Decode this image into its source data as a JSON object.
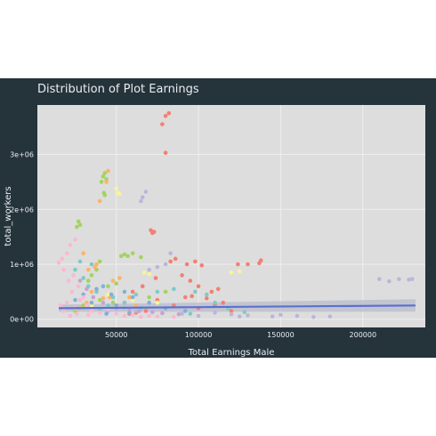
{
  "chart_data": {
    "type": "scatter",
    "title": "Distribution of Plot Earnings",
    "xlabel": "Total Earnings Male",
    "ylabel": "total_workers",
    "xlim": [
      2000,
      238000
    ],
    "ylim": [
      -150000,
      3900000
    ],
    "x_ticks": [
      50000,
      100000,
      150000,
      200000
    ],
    "x_tick_labels": [
      "50000",
      "100000",
      "150000",
      "200000"
    ],
    "y_ticks": [
      0,
      1000000,
      2000000,
      3000000
    ],
    "y_tick_labels": [
      "0e+00",
      "1e+06",
      "2e+06",
      "3e+06"
    ],
    "grid": true,
    "legend": "none",
    "colors": {
      "frame_bg": "#25333b",
      "panel_bg": "#dddddd",
      "grid": "#eeeeee",
      "trend_line": "#5b6fd1",
      "confidence_band": "#b8bcc9"
    },
    "trend_line": {
      "x": [
        15000,
        232000
      ],
      "y": [
        200000,
        250000
      ]
    },
    "series": [
      {
        "color": "#f47f72",
        "points": [
          [
            82000,
            3750000
          ],
          [
            80000,
            3700000
          ],
          [
            78000,
            3550000
          ],
          [
            80000,
            3030000
          ],
          [
            71000,
            1620000
          ],
          [
            72000,
            1570000
          ],
          [
            73000,
            1590000
          ],
          [
            83000,
            1050000
          ],
          [
            86000,
            1100000
          ],
          [
            93000,
            1000000
          ],
          [
            98000,
            1050000
          ],
          [
            102000,
            980000
          ],
          [
            90000,
            800000
          ],
          [
            95000,
            700000
          ],
          [
            100000,
            600000
          ],
          [
            108000,
            500000
          ],
          [
            112000,
            550000
          ],
          [
            74000,
            750000
          ],
          [
            66000,
            600000
          ],
          [
            60000,
            500000
          ],
          [
            55000,
            300000
          ],
          [
            75000,
            350000
          ],
          [
            85000,
            250000
          ],
          [
            110000,
            250000
          ],
          [
            124000,
            1000000
          ],
          [
            130000,
            1000000
          ],
          [
            137000,
            1020000
          ],
          [
            138000,
            1070000
          ],
          [
            120000,
            150000
          ],
          [
            115000,
            300000
          ],
          [
            100000,
            200000
          ],
          [
            92000,
            400000
          ],
          [
            68000,
            150000
          ],
          [
            58000,
            100000
          ],
          [
            62000,
            120000
          ],
          [
            105000,
            380000
          ],
          [
            96000,
            420000
          ]
        ]
      },
      {
        "color": "#a4d35f",
        "points": [
          [
            43000,
            2660000
          ],
          [
            42000,
            2600000
          ],
          [
            44000,
            2550000
          ],
          [
            41000,
            2500000
          ],
          [
            42500,
            2300000
          ],
          [
            43000,
            2260000
          ],
          [
            27000,
            1780000
          ],
          [
            28000,
            1720000
          ],
          [
            26000,
            1680000
          ],
          [
            53000,
            1150000
          ],
          [
            55000,
            1180000
          ],
          [
            57000,
            1150000
          ],
          [
            60000,
            1200000
          ],
          [
            65000,
            1130000
          ],
          [
            40000,
            1050000
          ],
          [
            38000,
            900000
          ],
          [
            35000,
            800000
          ],
          [
            33000,
            700000
          ],
          [
            45000,
            600000
          ],
          [
            50000,
            650000
          ],
          [
            40000,
            350000
          ],
          [
            48000,
            300000
          ],
          [
            30000,
            250000
          ],
          [
            70000,
            400000
          ],
          [
            80000,
            500000
          ],
          [
            25000,
            150000
          ]
        ]
      },
      {
        "color": "#f9b46b",
        "points": [
          [
            45000,
            2700000
          ],
          [
            44000,
            2500000
          ],
          [
            40000,
            2150000
          ],
          [
            38000,
            1000000
          ],
          [
            37000,
            950000
          ],
          [
            33000,
            900000
          ],
          [
            30000,
            1200000
          ],
          [
            48000,
            700000
          ],
          [
            52000,
            750000
          ],
          [
            46000,
            400000
          ],
          [
            42000,
            380000
          ],
          [
            35000,
            500000
          ],
          [
            58000,
            400000
          ],
          [
            32000,
            300000
          ],
          [
            62000,
            250000
          ],
          [
            28000,
            200000
          ]
        ]
      },
      {
        "color": "#f6f597",
        "points": [
          [
            50000,
            2380000
          ],
          [
            51000,
            2300000
          ],
          [
            52000,
            2280000
          ],
          [
            67000,
            850000
          ],
          [
            70000,
            820000
          ],
          [
            120000,
            850000
          ],
          [
            45000,
            450000
          ],
          [
            55000,
            500000
          ],
          [
            60000,
            350000
          ],
          [
            35000,
            250000
          ],
          [
            75000,
            300000
          ],
          [
            125000,
            870000
          ]
        ]
      },
      {
        "color": "#bcb5db",
        "points": [
          [
            68000,
            2320000
          ],
          [
            66000,
            2220000
          ],
          [
            65000,
            2150000
          ],
          [
            83000,
            1200000
          ],
          [
            80000,
            1000000
          ],
          [
            75000,
            950000
          ],
          [
            70000,
            900000
          ],
          [
            210000,
            730000
          ],
          [
            222000,
            730000
          ],
          [
            228000,
            720000
          ],
          [
            216000,
            690000
          ],
          [
            230000,
            730000
          ],
          [
            150000,
            80000
          ],
          [
            160000,
            60000
          ],
          [
            170000,
            40000
          ],
          [
            180000,
            50000
          ],
          [
            145000,
            50000
          ],
          [
            130000,
            70000
          ],
          [
            100000,
            60000
          ],
          [
            90000,
            100000
          ],
          [
            110000,
            120000
          ],
          [
            120000,
            90000
          ],
          [
            125000,
            50000
          ],
          [
            62000,
            150000
          ],
          [
            55000,
            200000
          ],
          [
            45000,
            150000
          ]
        ]
      },
      {
        "color": "#7ecac6",
        "points": [
          [
            35000,
            1000000
          ],
          [
            28000,
            1050000
          ],
          [
            25000,
            900000
          ],
          [
            30000,
            750000
          ],
          [
            33000,
            600000
          ],
          [
            38000,
            500000
          ],
          [
            48000,
            400000
          ],
          [
            62000,
            450000
          ],
          [
            75000,
            500000
          ],
          [
            85000,
            550000
          ],
          [
            98000,
            500000
          ],
          [
            105000,
            450000
          ],
          [
            110000,
            300000
          ],
          [
            118000,
            200000
          ],
          [
            128000,
            130000
          ],
          [
            55000,
            300000
          ],
          [
            65000,
            200000
          ],
          [
            45000,
            250000
          ],
          [
            40000,
            180000
          ],
          [
            95000,
            100000
          ]
        ]
      },
      {
        "color": "#7fb1d8",
        "points": [
          [
            38000,
            550000
          ],
          [
            42000,
            600000
          ],
          [
            47000,
            450000
          ],
          [
            55000,
            500000
          ],
          [
            60000,
            400000
          ],
          [
            30000,
            450000
          ],
          [
            25000,
            350000
          ],
          [
            35000,
            300000
          ],
          [
            50000,
            250000
          ],
          [
            70000,
            300000
          ],
          [
            80000,
            200000
          ],
          [
            92000,
            150000
          ],
          [
            58000,
            120000
          ],
          [
            44000,
            100000
          ]
        ]
      },
      {
        "color": "#fbb8d3",
        "points": [
          [
            15000,
            1030000
          ],
          [
            17000,
            1100000
          ],
          [
            20000,
            1200000
          ],
          [
            22000,
            1350000
          ],
          [
            25000,
            1450000
          ],
          [
            18000,
            900000
          ],
          [
            21000,
            700000
          ],
          [
            24000,
            800000
          ],
          [
            27000,
            600000
          ],
          [
            30000,
            400000
          ],
          [
            20000,
            300000
          ],
          [
            16000,
            250000
          ],
          [
            25000,
            200000
          ],
          [
            35000,
            150000
          ],
          [
            40000,
            120000
          ],
          [
            50000,
            100000
          ],
          [
            60000,
            80000
          ],
          [
            70000,
            60000
          ],
          [
            23000,
            500000
          ],
          [
            28000,
            350000
          ],
          [
            32000,
            250000
          ],
          [
            45000,
            180000
          ],
          [
            18000,
            150000
          ],
          [
            26000,
            100000
          ],
          [
            33000,
            80000
          ],
          [
            55000,
            60000
          ],
          [
            65000,
            40000
          ],
          [
            75000,
            50000
          ],
          [
            85000,
            40000
          ],
          [
            22000,
            60000
          ]
        ]
      },
      {
        "color": "#c7a3cf",
        "points": [
          [
            28000,
            700000
          ],
          [
            32000,
            550000
          ],
          [
            36000,
            400000
          ],
          [
            42000,
            300000
          ],
          [
            50000,
            200000
          ],
          [
            58000,
            180000
          ],
          [
            64000,
            150000
          ],
          [
            72000,
            130000
          ],
          [
            78000,
            110000
          ],
          [
            88000,
            90000
          ]
        ]
      }
    ]
  }
}
